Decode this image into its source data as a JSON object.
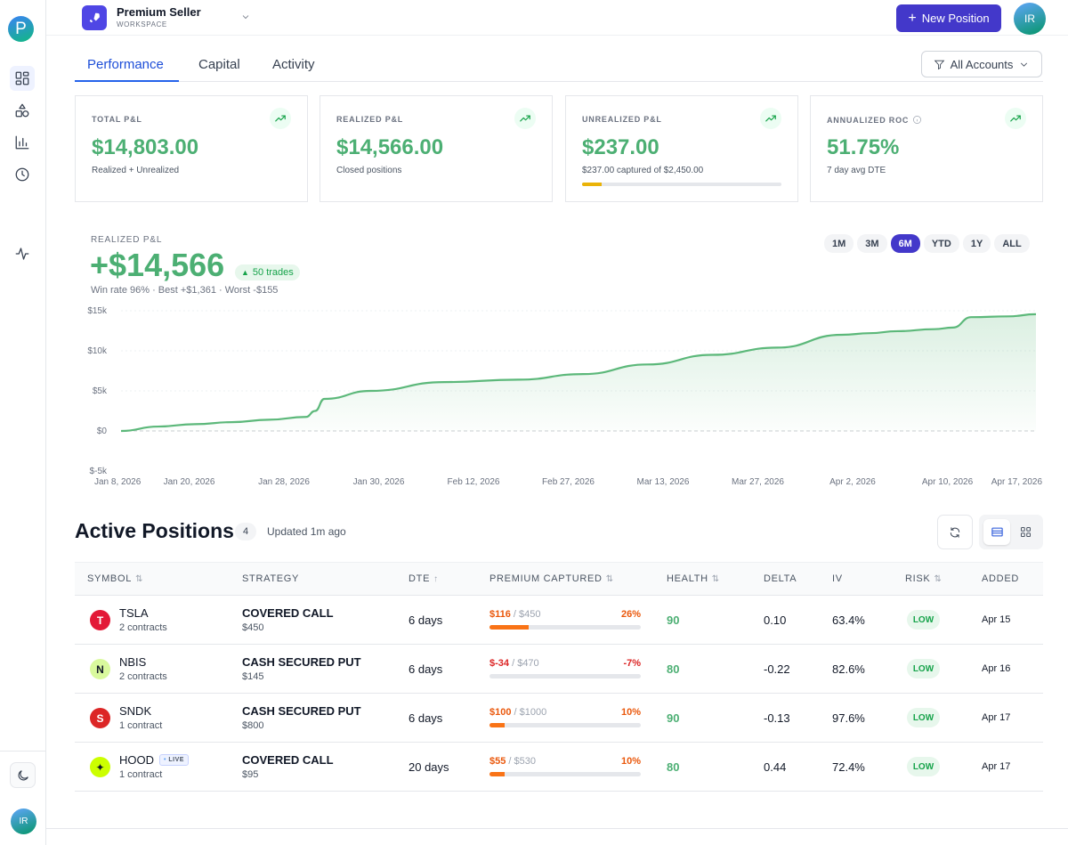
{
  "sidebar": {
    "brand_letter": "P",
    "avatar_initials": "IR",
    "nav": [
      {
        "name": "dashboard-icon",
        "active": true
      },
      {
        "name": "shapes-icon",
        "active": false
      },
      {
        "name": "bar-chart-icon",
        "active": false
      },
      {
        "name": "clock-icon",
        "active": false
      },
      {
        "name": "activity-icon",
        "active": false
      }
    ],
    "theme_icon": "moon-icon"
  },
  "header": {
    "workspace_name": "Premium Seller",
    "workspace_sub": "WORKSPACE",
    "workspace_icon": "rocket-icon",
    "new_position_label": "New Position",
    "avatar_initials": "IR"
  },
  "tabs": [
    {
      "label": "Performance",
      "active": true
    },
    {
      "label": "Capital",
      "active": false
    },
    {
      "label": "Activity",
      "active": false
    }
  ],
  "account_filter": {
    "label": "All Accounts",
    "icon": "filter-icon"
  },
  "stats": [
    {
      "label": "TOTAL P&L",
      "value": "$14,803.00",
      "sub": "Realized + Unrealized"
    },
    {
      "label": "REALIZED P&L",
      "value": "$14,566.00",
      "sub": "Closed positions"
    },
    {
      "label": "UNREALIZED P&L",
      "value": "$237.00",
      "sub": "$237.00 captured of $2,450.00",
      "progress": 0.097
    },
    {
      "label": "ANNUALIZED ROC",
      "value": "51.75%",
      "sub": "7 day avg DTE",
      "info": true
    }
  ],
  "chart_header": {
    "label": "REALIZED P&L",
    "value": "+$14,566",
    "badge": "50 trades",
    "meta": "Win rate 96%  · Best +$1,361 · Worst -$155"
  },
  "ranges": [
    {
      "label": "1M",
      "active": false
    },
    {
      "label": "3M",
      "active": false
    },
    {
      "label": "6M",
      "active": true
    },
    {
      "label": "YTD",
      "active": false
    },
    {
      "label": "1Y",
      "active": false
    },
    {
      "label": "ALL",
      "active": false
    }
  ],
  "chart_data": {
    "type": "area",
    "title": "",
    "xlabel": "",
    "ylabel": "",
    "ylim": [
      -5000,
      15000
    ],
    "yticks": [
      "$15k",
      "$10k",
      "$5k",
      "$0",
      "$-5k"
    ],
    "ytick_values": [
      15000,
      10000,
      5000,
      0,
      -5000
    ],
    "xticks": [
      "Jan 8, 2026",
      "Jan 20, 2026",
      "Jan 28, 2026",
      "Jan 30, 2026",
      "Feb 12, 2026",
      "Feb 27, 2026",
      "Mar 13, 2026",
      "Mar 27, 2026",
      "Apr 2, 2026",
      "Apr 10, 2026",
      "Apr 17, 2026"
    ],
    "grid": true,
    "color": "#5cb87a",
    "x": [
      "Jan 8, 2026",
      "Jan 12, 2026",
      "Jan 16, 2026",
      "Jan 20, 2026",
      "Jan 24, 2026",
      "Jan 28, 2026",
      "Jan 29, 2026",
      "Jan 30, 2026",
      "Feb 4, 2026",
      "Feb 12, 2026",
      "Feb 20, 2026",
      "Feb 27, 2026",
      "Mar 6, 2026",
      "Mar 13, 2026",
      "Mar 20, 2026",
      "Mar 27, 2026",
      "Mar 30, 2026",
      "Apr 2, 2026",
      "Apr 6, 2026",
      "Apr 8, 2026",
      "Apr 10, 2026",
      "Apr 14, 2026",
      "Apr 17, 2026"
    ],
    "values": [
      0,
      550,
      850,
      1100,
      1400,
      1750,
      2500,
      4000,
      5000,
      6100,
      6400,
      7100,
      8300,
      9500,
      10400,
      12000,
      12200,
      12450,
      12700,
      12900,
      14200,
      14300,
      14566
    ]
  },
  "positions": {
    "title": "Active Positions",
    "count": "4",
    "updated": "Updated 1m ago",
    "columns": [
      {
        "label": "SYMBOL",
        "sort": "⇅"
      },
      {
        "label": "STRATEGY",
        "sort": ""
      },
      {
        "label": "DTE",
        "sort": "↑"
      },
      {
        "label": "PREMIUM CAPTURED",
        "sort": "⇅"
      },
      {
        "label": "HEALTH",
        "sort": "⇅"
      },
      {
        "label": "DELTA",
        "sort": ""
      },
      {
        "label": "IV",
        "sort": ""
      },
      {
        "label": "RISK",
        "sort": "⇅"
      },
      {
        "label": "ADDED",
        "sort": ""
      }
    ],
    "rows": [
      {
        "symbol": "TSLA",
        "contracts": "2 contracts",
        "live": "",
        "logo_letter": "T",
        "logo_bg": "#e31937",
        "logo_fg": "#ffffff",
        "strategy": "COVERED CALL",
        "strike": "$450",
        "dte": "6 days",
        "premium_amt": "$116",
        "premium_total": " / $450",
        "premium_pct": "26%",
        "pct_color": "#ea580c",
        "amt_color": "#ea580c",
        "progress": 0.26,
        "health": "90",
        "delta": "0.10",
        "iv": "63.4%",
        "risk": "LOW",
        "added": "Apr 15"
      },
      {
        "symbol": "NBIS",
        "contracts": "2 contracts",
        "live": "",
        "logo_letter": "N",
        "logo_bg": "#d9f99d",
        "logo_fg": "#111827",
        "strategy": "CASH SECURED PUT",
        "strike": "$145",
        "dte": "6 days",
        "premium_amt": "$-34",
        "premium_total": " / $470",
        "premium_pct": "-7%",
        "pct_color": "#dc2626",
        "amt_color": "#dc2626",
        "progress": 0,
        "health": "80",
        "delta": "-0.22",
        "iv": "82.6%",
        "risk": "LOW",
        "added": "Apr 16"
      },
      {
        "symbol": "SNDK",
        "contracts": "1 contract",
        "live": "",
        "logo_letter": "S",
        "logo_bg": "#dc2626",
        "logo_fg": "#ffffff",
        "strategy": "CASH SECURED PUT",
        "strike": "$800",
        "dte": "6 days",
        "premium_amt": "$100",
        "premium_total": " / $1000",
        "premium_pct": "10%",
        "pct_color": "#ea580c",
        "amt_color": "#ea580c",
        "progress": 0.1,
        "health": "90",
        "delta": "-0.13",
        "iv": "97.6%",
        "risk": "LOW",
        "added": "Apr 17"
      },
      {
        "symbol": "HOOD",
        "contracts": "1 contract",
        "live": "LIVE",
        "logo_letter": "✦",
        "logo_bg": "#ccff00",
        "logo_fg": "#111827",
        "strategy": "COVERED CALL",
        "strike": "$95",
        "dte": "20 days",
        "premium_amt": "$55",
        "premium_total": " / $530",
        "premium_pct": "10%",
        "pct_color": "#ea580c",
        "amt_color": "#ea580c",
        "progress": 0.1,
        "health": "80",
        "delta": "0.44",
        "iv": "72.4%",
        "risk": "LOW",
        "added": "Apr 17"
      }
    ]
  }
}
